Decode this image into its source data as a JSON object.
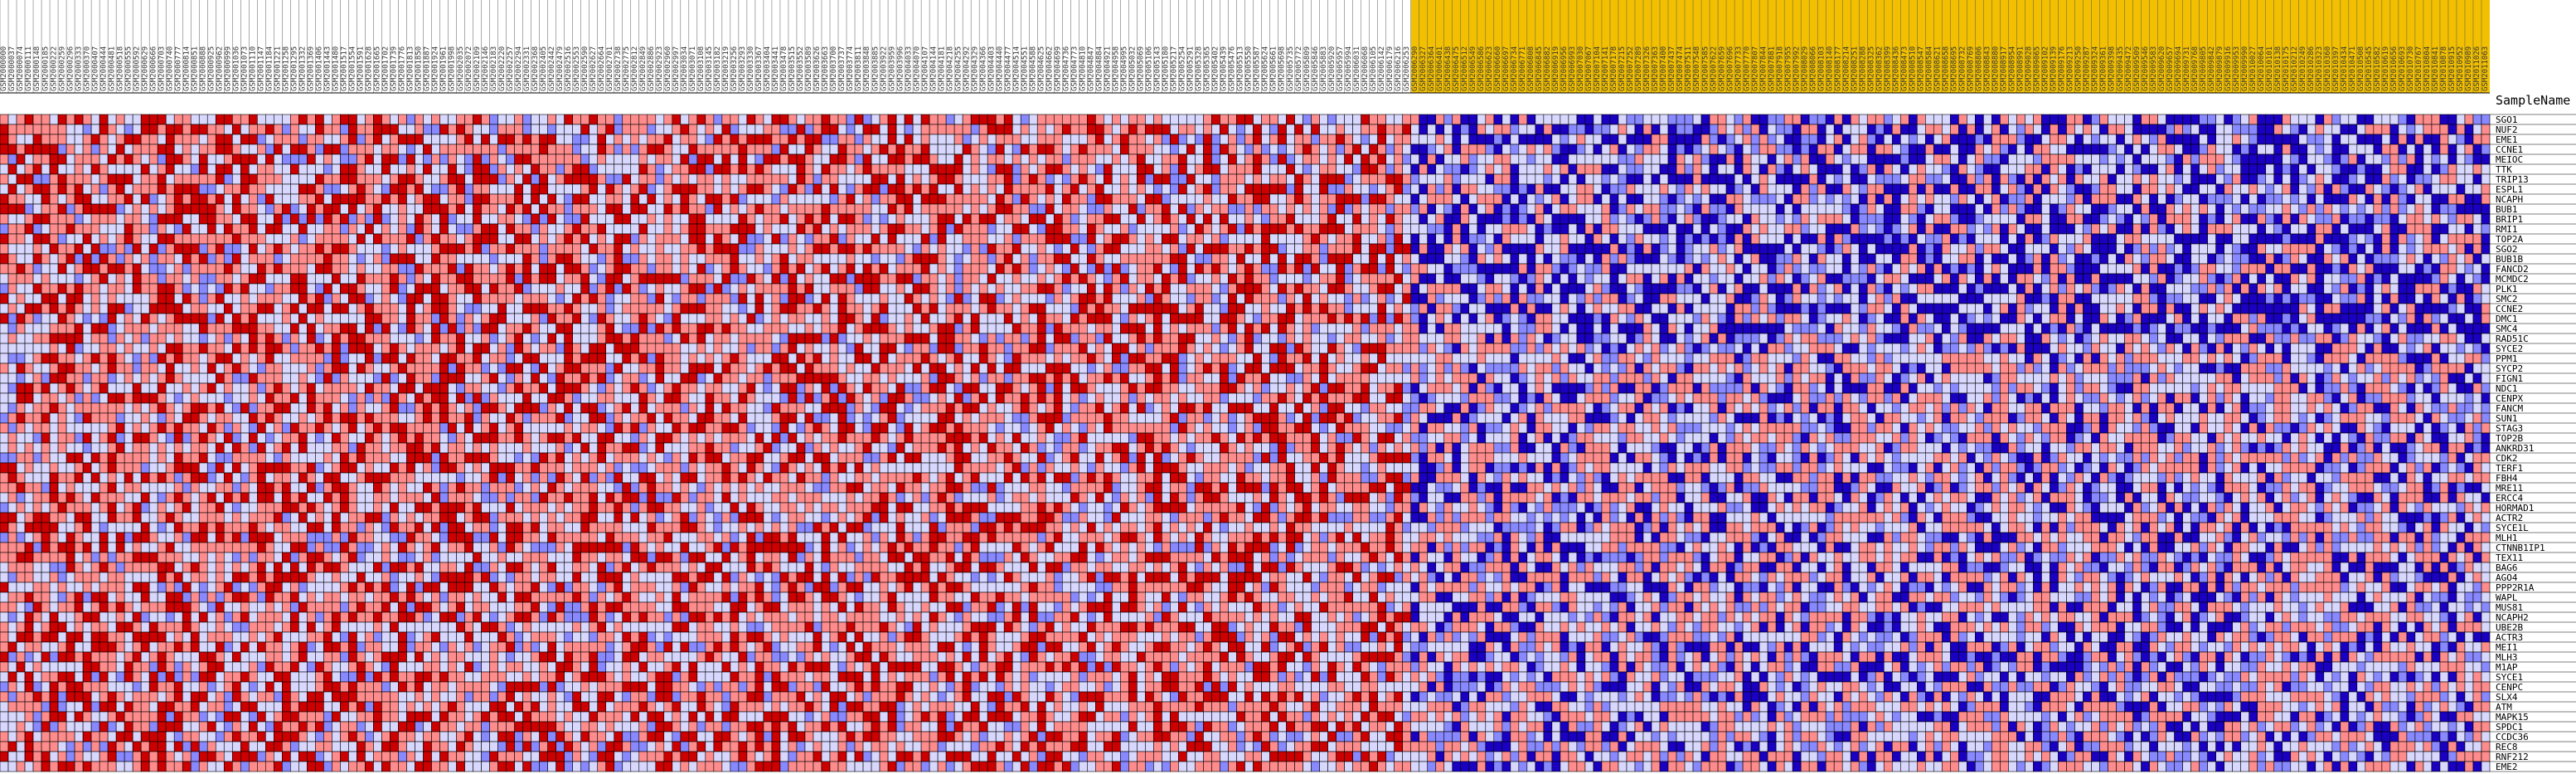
{
  "chart_data": {
    "type": "heatmap",
    "row_header_label": "SampleName",
    "column_label_prefix": "GSM",
    "column_label_count": 300,
    "group_split_after_column": 170,
    "colors": {
      "high": "#cc0000",
      "mid_high": "#ff8c8c",
      "neutral": "#d8d8ff",
      "mid_low": "#8888ff",
      "low": "#1a00c0",
      "group1_header": "#ffffff",
      "group2_header": "#f2c000",
      "grid": "#000000"
    },
    "rows": [
      "SGO1",
      "NUF2",
      "EME1",
      "CCNE1",
      "MEIOC",
      "TTK",
      "TRIP13",
      "ESPL1",
      "NCAPH",
      "BUB1",
      "BRIP1",
      "RMI1",
      "TOP2A",
      "SGO2",
      "BUB1B",
      "FANCD2",
      "MCMDC2",
      "PLK1",
      "SMC2",
      "CCNE2",
      "DMC1",
      "SMC4",
      "RAD51C",
      "SYCE2",
      "PPM1",
      "SYCP2",
      "FIGN1",
      "NDC1",
      "CENPX",
      "FANCM",
      "SUN1",
      "STAG3",
      "TOP2B",
      "ANKRD31",
      "CDK2",
      "TERF1",
      "FBH4",
      "MRE11",
      "ERCC4",
      "HORMAD1",
      "ACTR2",
      "SYCE1L",
      "MLH1",
      "CTNNB1IP1",
      "TEX11",
      "BAG6",
      "AGO4",
      "PPP2R1A",
      "WAPL",
      "MUS81",
      "NCAPH2",
      "UBE2B",
      "ACTR3",
      "MEI1",
      "MLH3",
      "M1AP",
      "SYCE1",
      "CENPC",
      "SLX4",
      "ATM",
      "MAPK15",
      "SPDC1",
      "CCDC36",
      "REC8",
      "RNF212",
      "EME2"
    ]
  }
}
